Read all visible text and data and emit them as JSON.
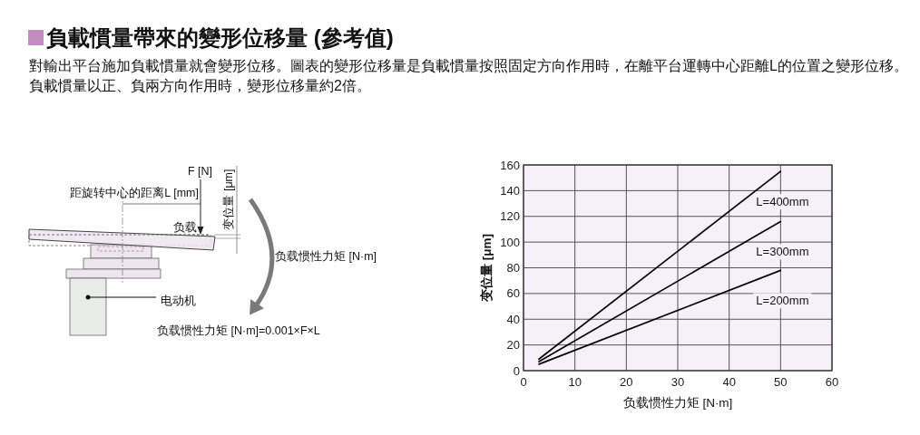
{
  "chart_data": [
    {
      "type": "other",
      "title": "負載慣量帶來的變形位移量 (參考值)",
      "subtitle": "對輸出平台施加負載慣量就會變形位移。圖表的變形位移量是負載慣量按照固定方向作用時，在離平台運轉中心距離L的位置之變形位移。負載慣量以正、負兩方向作用時，變形位移量約2倍。",
      "annotations": [
        "F [N]",
        "距旋转中心的距离L [mm]",
        "负载",
        "变位量 [μm]",
        "负载惯性力矩 [N·m]",
        "电动机",
        "负载惯性力矩 [N·m]=0.001×F×L"
      ]
    },
    {
      "type": "line",
      "xlabel": "负载惯性力矩 [N·m]",
      "ylabel": "变位量 [μm]",
      "x": [
        3,
        50
      ],
      "series": [
        {
          "name": "L=400mm",
          "color": "#000000",
          "values": [
            9,
            155
          ]
        },
        {
          "name": "L=300mm",
          "color": "#000000",
          "values": [
            7,
            116
          ]
        },
        {
          "name": "L=200mm",
          "color": "#000000",
          "values": [
            5,
            78
          ]
        }
      ],
      "xlim": [
        0,
        60
      ],
      "xticks": [
        0,
        10,
        20,
        30,
        40,
        50,
        60
      ],
      "ylim": [
        0,
        160
      ],
      "yticks": [
        0,
        20,
        40,
        60,
        80,
        100,
        120,
        140,
        160
      ],
      "grid": true,
      "line_style": "solid"
    }
  ]
}
